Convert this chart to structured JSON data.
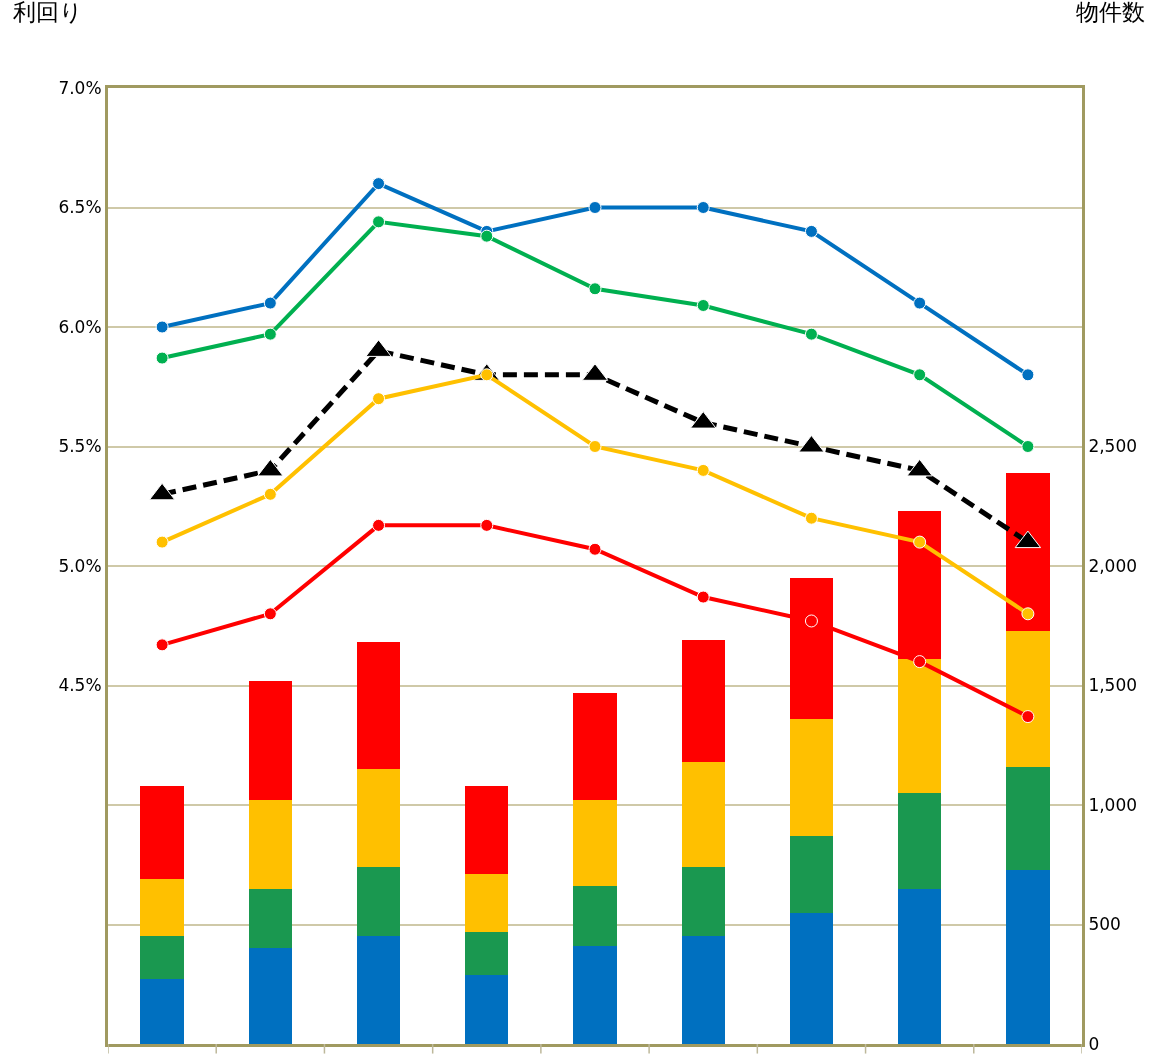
{
  "chart_data": {
    "type": "bar",
    "stacked": true,
    "categories": [
      null,
      null,
      null,
      null,
      null,
      null,
      null,
      null,
      null
    ],
    "ylabel": "利回り",
    "y2label": "物件数",
    "ylim": [
      3.0,
      7.0
    ],
    "yticks": [
      {
        "value": 3.0,
        "label": null
      },
      {
        "value": 3.5,
        "label": null
      },
      {
        "value": 4.0,
        "label": null
      },
      {
        "value": 4.5,
        "label": "4.5%"
      },
      {
        "value": 5.0,
        "label": "5.0%"
      },
      {
        "value": 5.5,
        "label": "5.5%"
      },
      {
        "value": 6.0,
        "label": "6.0%"
      },
      {
        "value": 6.5,
        "label": "6.5%"
      },
      {
        "value": 7.0,
        "label": "7.0%"
      }
    ],
    "y2lim": [
      0,
      4000
    ],
    "y2ticks": [
      0,
      {
        "value": 500,
        "label": "500"
      },
      {
        "value": 1000,
        "label": "1,000"
      },
      {
        "value": 1500,
        "label": "1,500"
      },
      {
        "value": 2000,
        "label": "2,000"
      },
      {
        "value": 2500,
        "label": "2,500"
      },
      {
        "value": 3000,
        "label": null
      },
      {
        "value": 3500,
        "label": null
      },
      {
        "value": 4000,
        "label": null
      }
    ],
    "grid": "y",
    "series": [
      {
        "axis": "y2",
        "color": "#0070c0",
        "values": [
          270,
          400,
          450,
          290,
          410,
          450,
          550,
          650,
          730
        ]
      },
      {
        "axis": "y2",
        "color": "#1a9850",
        "values": [
          180,
          250,
          290,
          180,
          250,
          290,
          320,
          400,
          430
        ]
      },
      {
        "axis": "y2",
        "color": "#ffc000",
        "values": [
          240,
          370,
          410,
          240,
          360,
          440,
          490,
          560,
          570
        ]
      },
      {
        "axis": "y2",
        "color": "#ff0000",
        "values": [
          390,
          500,
          530,
          370,
          450,
          510,
          590,
          620,
          660
        ]
      },
      {
        "type": "line",
        "color": "#0070c0",
        "marker": "circle",
        "line_style": "solid",
        "values": [
          6.0,
          6.1,
          6.6,
          6.4,
          6.5,
          6.5,
          6.4,
          6.1,
          5.8
        ]
      },
      {
        "type": "line",
        "color": "#00b050",
        "marker": "circle",
        "line_style": "solid",
        "values": [
          5.87,
          5.97,
          6.44,
          6.38,
          6.16,
          6.09,
          5.97,
          5.8,
          5.5
        ]
      },
      {
        "type": "line",
        "color": "#000000",
        "marker": "triangle",
        "line_style": "dashed",
        "values": [
          5.3,
          5.4,
          5.9,
          5.8,
          5.8,
          5.6,
          5.5,
          5.4,
          5.1
        ]
      },
      {
        "type": "line",
        "color": "#ffc000",
        "marker": "circle",
        "line_style": "solid",
        "values": [
          5.1,
          5.3,
          5.7,
          5.8,
          5.5,
          5.4,
          5.2,
          5.1,
          4.8
        ]
      },
      {
        "type": "line",
        "color": "#ff0000",
        "marker": "circle",
        "line_style": "solid",
        "values": [
          4.67,
          4.8,
          5.17,
          5.17,
          5.07,
          4.87,
          4.77,
          4.6,
          4.37
        ]
      }
    ]
  }
}
